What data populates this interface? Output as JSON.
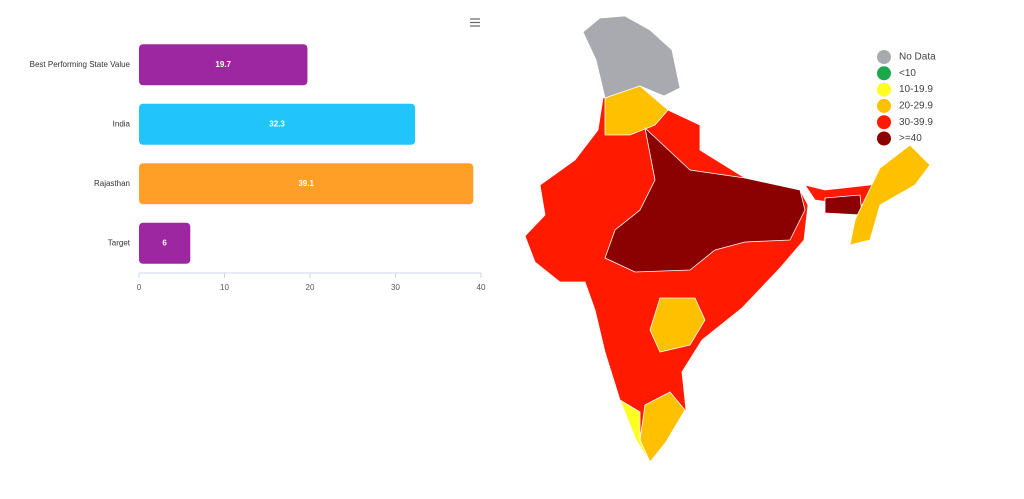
{
  "chart_data": [
    {
      "type": "hbar",
      "categories": [
        "Best Performing State Value",
        "India",
        "Rajasthan",
        "Target"
      ],
      "values": [
        19.7,
        32.3,
        39.1,
        6
      ],
      "colors": [
        "#9c27a0",
        "#22c5fb",
        "#ff9f28",
        "#9c27a0"
      ],
      "xlim": [
        0,
        40
      ],
      "xticks": [
        0,
        10,
        20,
        30,
        40
      ]
    },
    {
      "type": "map",
      "legend": [
        {
          "label": "No Data",
          "color": "#a9a9b0"
        },
        {
          "label": "<10",
          "color": "#1aa84a"
        },
        {
          "label": "10-19.9",
          "color": "#ffff22"
        },
        {
          "label": "20-29.9",
          "color": "#ffc000"
        },
        {
          "label": "30-39.9",
          "color": "#ff1a00"
        },
        {
          "label": ">=40",
          "color": "#8b0000"
        }
      ]
    }
  ]
}
